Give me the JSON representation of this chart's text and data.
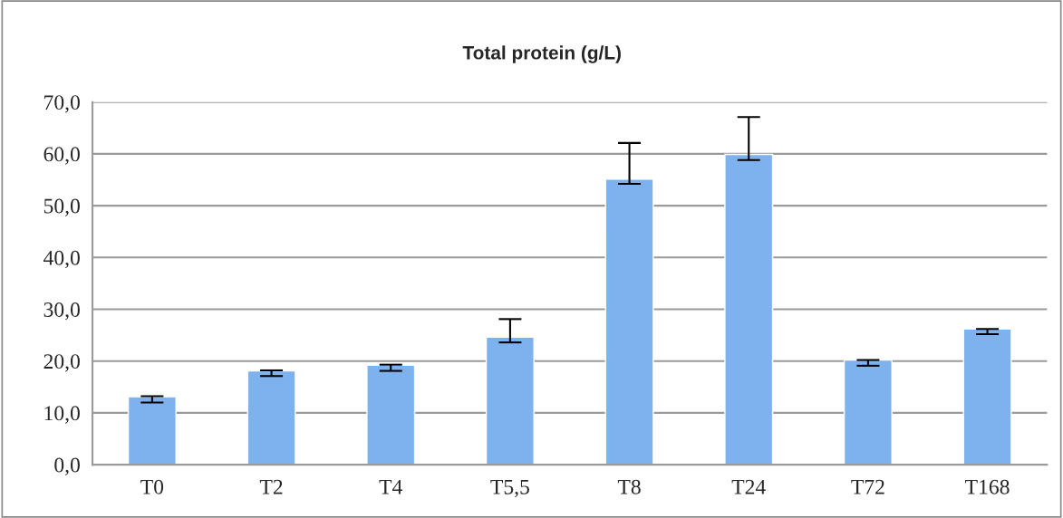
{
  "chart_data": {
    "type": "bar",
    "title": "Total protein (g/L)",
    "categories": [
      "T0",
      "T2",
      "T4",
      "T5,5",
      "T8",
      "T24",
      "T72",
      "T168"
    ],
    "values": [
      13.1,
      18.1,
      19.2,
      24.6,
      55.1,
      59.9,
      20.2,
      26.2
    ],
    "errors": [
      [
        12.0,
        13.2
      ],
      [
        17.1,
        18.2
      ],
      [
        18.1,
        19.3
      ],
      [
        23.6,
        28.1
      ],
      [
        54.2,
        62.1
      ],
      [
        58.8,
        67.1
      ],
      [
        19.1,
        20.2
      ],
      [
        25.2,
        26.2
      ]
    ],
    "color": "#7eb2ee",
    "ylim": [
      0,
      70
    ],
    "yticks": [
      {
        "value": 0,
        "label": "0,0"
      },
      {
        "value": 10,
        "label": "10,0"
      },
      {
        "value": 20,
        "label": "20,0"
      },
      {
        "value": 30,
        "label": "30,0"
      },
      {
        "value": 40,
        "label": "40,0"
      },
      {
        "value": 50,
        "label": "50,0"
      },
      {
        "value": 60,
        "label": "60,0"
      },
      {
        "value": 70,
        "label": "70,0"
      }
    ],
    "grid": "y"
  }
}
